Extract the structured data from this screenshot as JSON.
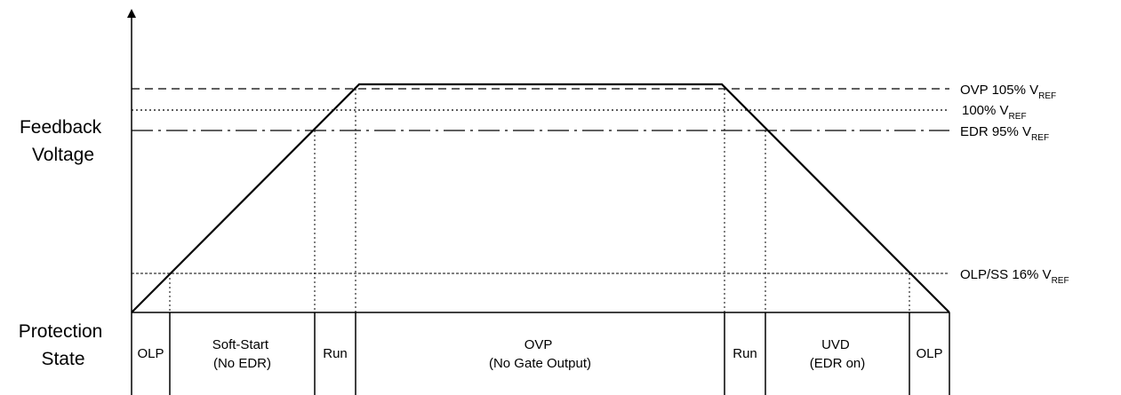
{
  "y_axis_label": [
    "Feedback",
    "Voltage"
  ],
  "state_axis_label": [
    "Protection",
    "State"
  ],
  "reference_levels": [
    {
      "name": "ovp",
      "prefix": "OVP 105% V",
      "subscript": "REF",
      "style": "dashed"
    },
    {
      "name": "hundred",
      "prefix": "100% V",
      "subscript": "REF",
      "style": "dotted"
    },
    {
      "name": "edr",
      "prefix": "EDR  95% V",
      "subscript": "REF",
      "style": "dash-dot"
    },
    {
      "name": "olp",
      "prefix": "OLP/SS  16% V",
      "subscript": "REF",
      "style": "thin-dashed"
    }
  ],
  "states": [
    {
      "lines": [
        "OLP"
      ]
    },
    {
      "lines": [
        "Soft-Start",
        "(No EDR)"
      ]
    },
    {
      "lines": [
        "Run"
      ]
    },
    {
      "lines": [
        "OVP",
        "(No Gate Output)"
      ]
    },
    {
      "lines": [
        "Run"
      ]
    },
    {
      "lines": [
        "UVD",
        "(EDR on)"
      ]
    },
    {
      "lines": [
        "OLP"
      ]
    }
  ],
  "colors": {
    "line": "#000000",
    "background": "#ffffff"
  }
}
